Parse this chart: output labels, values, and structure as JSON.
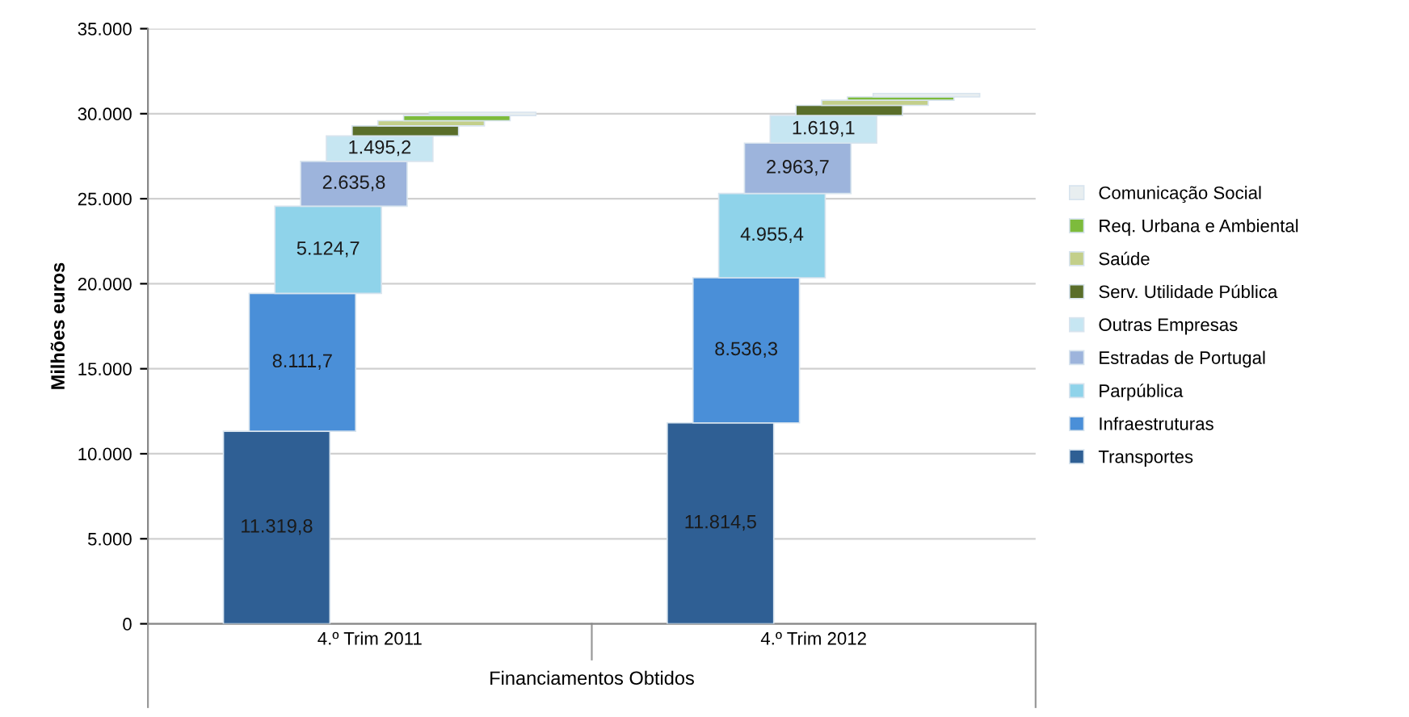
{
  "chart_data": {
    "type": "bar",
    "stacked": true,
    "ylabel": "Milhões euros",
    "xlabel": "Financiamentos Obtidos",
    "categories": [
      "4.º Trim 2011",
      "4.º Trim 2012"
    ],
    "ylim": [
      0,
      35000
    ],
    "yticks": [
      {
        "value": 0,
        "label": "0"
      },
      {
        "value": 5000,
        "label": "5.000"
      },
      {
        "value": 10000,
        "label": "10.000"
      },
      {
        "value": 15000,
        "label": "15.000"
      },
      {
        "value": 20000,
        "label": "20.000"
      },
      {
        "value": 25000,
        "label": "25.000"
      },
      {
        "value": 30000,
        "label": "30.000"
      },
      {
        "value": 35000,
        "label": "35.000"
      }
    ],
    "grid": "y",
    "legend": "right",
    "series": [
      {
        "name": "Transportes",
        "color": "#2f5f94",
        "values": [
          11319.8,
          11814.5
        ],
        "value_labels": [
          "11.319,8",
          "11.814,5"
        ]
      },
      {
        "name": "Infraestruturas",
        "color": "#4a8fd8",
        "values": [
          8111.7,
          8536.3
        ],
        "value_labels": [
          "8.111,7",
          "8.536,3"
        ]
      },
      {
        "name": "Parpública",
        "color": "#8fd3ea",
        "values": [
          5124.7,
          4955.4
        ],
        "value_labels": [
          "5.124,7",
          "4.955,4"
        ]
      },
      {
        "name": "Estradas de Portugal",
        "color": "#9db4dc",
        "values": [
          2635.8,
          2963.7
        ],
        "value_labels": [
          "2.635,8",
          "2.963,7"
        ]
      },
      {
        "name": "Outras Empresas",
        "color": "#c6e6f2",
        "values": [
          1495.2,
          1619.1
        ],
        "value_labels": [
          "1.495,2",
          "1.619,1"
        ]
      },
      {
        "name": "Serv. Utilidade Pública",
        "color": "#5a6e2a",
        "values": [
          600,
          600
        ]
      },
      {
        "name": "Saúde",
        "color": "#c3cf8a",
        "values": [
          300,
          300
        ]
      },
      {
        "name": "Req. Urbana e Ambiental",
        "color": "#7dbb3c",
        "values": [
          300,
          200
        ]
      },
      {
        "name": "Comunicação Social",
        "color": "#e8eef0",
        "values": [
          200,
          200
        ]
      }
    ]
  }
}
